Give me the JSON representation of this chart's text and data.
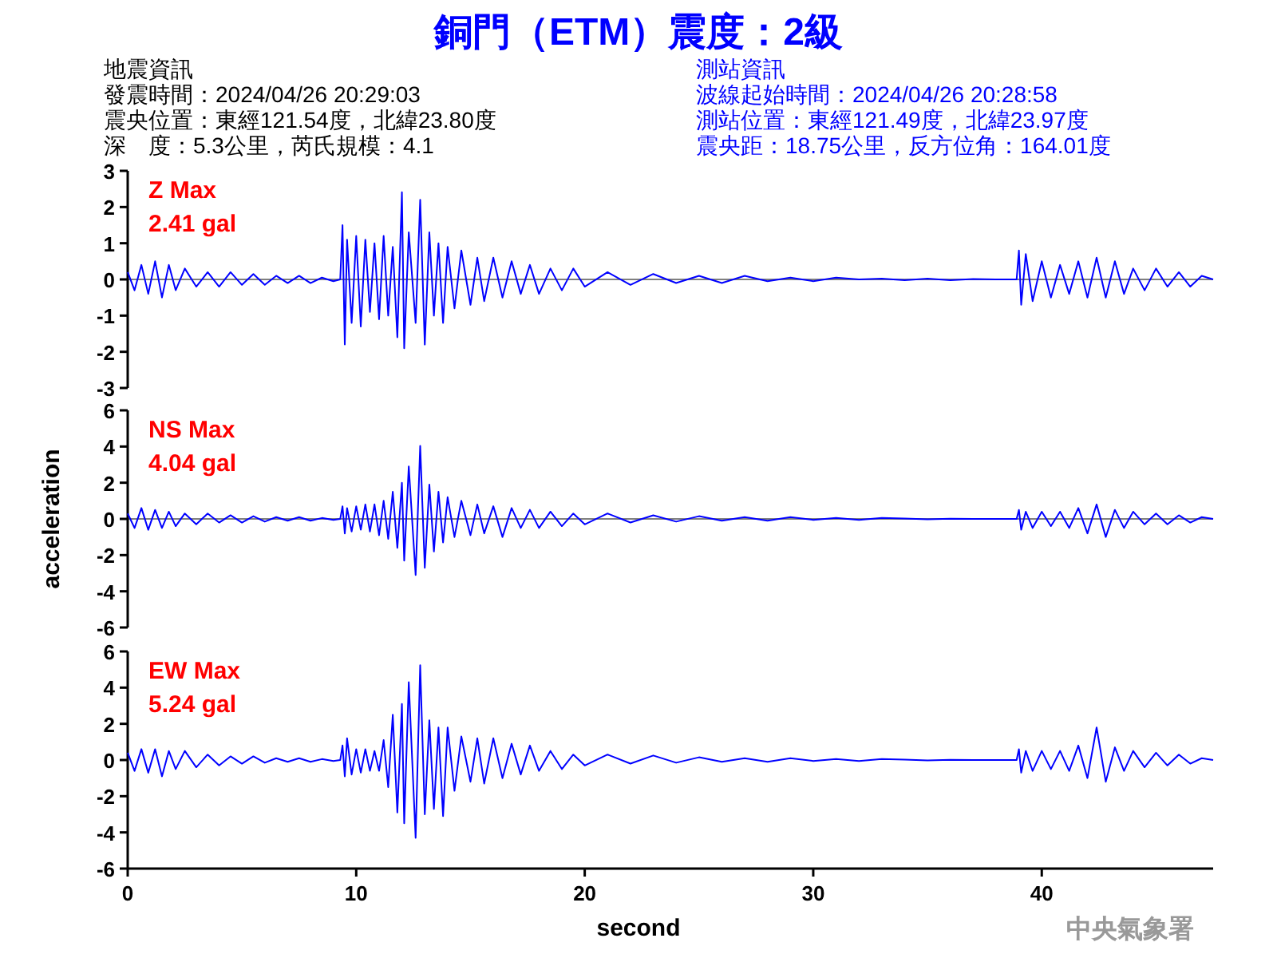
{
  "chart_data": [
    {
      "type": "line",
      "title": "銅門（ETM）震度：2級",
      "annotations": [
        "Z Max",
        "2.41 gal",
        "地震資訊",
        "發震時間：2024/04/26 20:29:03",
        "震央位置：東經121.54度，北緯23.80度",
        "深　度：5.3公里，芮氏規模：4.1",
        "測站資訊",
        "波線起始時間：2024/04/26 20:28:58",
        "測站位置：東經121.49度，北緯23.97度",
        "震央距：18.75公里，反方位角：164.01度"
      ],
      "x": [
        0,
        0.3,
        0.6,
        0.9,
        1.2,
        1.5,
        1.8,
        2.1,
        2.5,
        3,
        3.5,
        4,
        4.5,
        5,
        5.5,
        6,
        6.5,
        7,
        7.5,
        8,
        8.5,
        9,
        9.3,
        9.4,
        9.5,
        9.6,
        9.8,
        10,
        10.2,
        10.4,
        10.6,
        10.8,
        11,
        11.2,
        11.4,
        11.6,
        11.8,
        12,
        12.1,
        12.3,
        12.6,
        12.8,
        13,
        13.2,
        13.4,
        13.6,
        13.8,
        14,
        14.3,
        14.6,
        15,
        15.3,
        15.6,
        16,
        16.4,
        16.8,
        17.2,
        17.6,
        18,
        18.5,
        19,
        19.5,
        20,
        21,
        22,
        23,
        24,
        25,
        26,
        27,
        28,
        29,
        30,
        31,
        32,
        33,
        34,
        35,
        36,
        37,
        38,
        38.9,
        39,
        39.1,
        39.3,
        39.6,
        40,
        40.4,
        40.8,
        41.2,
        41.6,
        42,
        42.4,
        42.8,
        43.2,
        43.6,
        44,
        44.5,
        45,
        45.5,
        46,
        46.5,
        47,
        47.5
      ],
      "series": [
        {
          "color": "#0000ff",
          "values": [
            0.2,
            -0.3,
            0.4,
            -0.4,
            0.5,
            -0.5,
            0.4,
            -0.3,
            0.3,
            -0.2,
            0.2,
            -0.2,
            0.2,
            -0.15,
            0.15,
            -0.15,
            0.1,
            -0.1,
            0.1,
            -0.1,
            0.05,
            -0.05,
            0,
            1.5,
            -1.8,
            1.1,
            -1.2,
            1.2,
            -1.3,
            1.1,
            -0.9,
            1.0,
            -1.1,
            1.2,
            -1.0,
            0.9,
            -1.6,
            2.41,
            -1.9,
            1.3,
            -1.2,
            2.2,
            -1.8,
            1.3,
            -1.0,
            1.0,
            -1.2,
            0.9,
            -0.8,
            0.8,
            -0.7,
            0.6,
            -0.6,
            0.6,
            -0.5,
            0.5,
            -0.4,
            0.4,
            -0.4,
            0.3,
            -0.3,
            0.3,
            -0.2,
            0.2,
            -0.15,
            0.15,
            -0.1,
            0.1,
            -0.1,
            0.1,
            -0.05,
            0.05,
            -0.05,
            0.05,
            0,
            0.02,
            -0.02,
            0.02,
            -0.02,
            0.01,
            0,
            0,
            0.8,
            -0.7,
            0.7,
            -0.6,
            0.5,
            -0.5,
            0.4,
            -0.4,
            0.5,
            -0.5,
            0.6,
            -0.5,
            0.5,
            -0.4,
            0.3,
            -0.3,
            0.3,
            -0.2,
            0.2,
            -0.2,
            0.1,
            0
          ]
        }
      ],
      "xlim": [
        0,
        47.5
      ],
      "ylim": [
        -3,
        3
      ],
      "yticks": [
        -3,
        -2,
        -1,
        0,
        1,
        2,
        3
      ],
      "tick_labels": "y"
    },
    {
      "type": "line",
      "ylabel": "acceleration",
      "annotations": [
        "NS Max",
        "4.04 gal"
      ],
      "x": [
        0,
        0.3,
        0.6,
        0.9,
        1.2,
        1.5,
        1.8,
        2.1,
        2.5,
        3,
        3.5,
        4,
        4.5,
        5,
        5.5,
        6,
        6.5,
        7,
        7.5,
        8,
        8.5,
        9,
        9.3,
        9.4,
        9.5,
        9.6,
        9.8,
        10,
        10.2,
        10.4,
        10.6,
        10.8,
        11,
        11.2,
        11.4,
        11.6,
        11.8,
        12,
        12.1,
        12.3,
        12.6,
        12.8,
        13,
        13.2,
        13.4,
        13.6,
        13.8,
        14,
        14.3,
        14.6,
        15,
        15.3,
        15.6,
        16,
        16.4,
        16.8,
        17.2,
        17.6,
        18,
        18.5,
        19,
        19.5,
        20,
        21,
        22,
        23,
        24,
        25,
        26,
        27,
        28,
        29,
        30,
        31,
        32,
        33,
        34,
        35,
        36,
        37,
        38,
        38.9,
        39,
        39.1,
        39.3,
        39.6,
        40,
        40.4,
        40.8,
        41.2,
        41.6,
        42,
        42.4,
        42.8,
        43.2,
        43.6,
        44,
        44.5,
        45,
        45.5,
        46,
        46.5,
        47,
        47.5
      ],
      "series": [
        {
          "color": "#0000ff",
          "values": [
            0.3,
            -0.5,
            0.6,
            -0.6,
            0.5,
            -0.5,
            0.4,
            -0.4,
            0.3,
            -0.3,
            0.3,
            -0.2,
            0.2,
            -0.2,
            0.15,
            -0.15,
            0.1,
            -0.1,
            0.1,
            -0.1,
            0.05,
            -0.05,
            0,
            0.7,
            -0.8,
            0.6,
            -0.7,
            0.7,
            -0.6,
            0.8,
            -0.7,
            0.8,
            -0.9,
            1.0,
            -1.1,
            1.5,
            -1.6,
            2.0,
            -2.3,
            2.9,
            -3.1,
            4.04,
            -2.7,
            1.9,
            -1.8,
            1.5,
            -1.3,
            1.2,
            -1.0,
            1.0,
            -0.9,
            0.8,
            -0.8,
            0.7,
            -1.0,
            0.6,
            -0.5,
            0.5,
            -0.5,
            0.4,
            -0.4,
            0.3,
            -0.3,
            0.3,
            -0.2,
            0.2,
            -0.15,
            0.15,
            -0.1,
            0.1,
            -0.1,
            0.1,
            -0.05,
            0.05,
            -0.05,
            0.05,
            0.02,
            -0.02,
            0.01,
            0,
            0,
            0,
            0.5,
            -0.6,
            0.4,
            -0.5,
            0.4,
            -0.4,
            0.4,
            -0.5,
            0.6,
            -0.8,
            0.8,
            -1.0,
            0.5,
            -0.5,
            0.4,
            -0.3,
            0.3,
            -0.3,
            0.2,
            -0.2,
            0.1,
            0
          ]
        }
      ],
      "xlim": [
        0,
        47.5
      ],
      "ylim": [
        -6,
        6
      ],
      "yticks": [
        -6,
        -4,
        -2,
        0,
        2,
        4,
        6
      ],
      "tick_labels": "y"
    },
    {
      "type": "line",
      "xlabel": "second",
      "annotations": [
        "EW Max",
        "5.24 gal",
        "中央氣象署"
      ],
      "x": [
        0,
        0.3,
        0.6,
        0.9,
        1.2,
        1.5,
        1.8,
        2.1,
        2.5,
        3,
        3.5,
        4,
        4.5,
        5,
        5.5,
        6,
        6.5,
        7,
        7.5,
        8,
        8.5,
        9,
        9.3,
        9.4,
        9.5,
        9.6,
        9.8,
        10,
        10.2,
        10.4,
        10.6,
        10.8,
        11,
        11.2,
        11.4,
        11.6,
        11.8,
        12,
        12.1,
        12.3,
        12.6,
        12.8,
        13,
        13.2,
        13.4,
        13.6,
        13.8,
        14,
        14.3,
        14.6,
        15,
        15.3,
        15.6,
        16,
        16.4,
        16.8,
        17.2,
        17.6,
        18,
        18.5,
        19,
        19.5,
        20,
        21,
        22,
        23,
        24,
        25,
        26,
        27,
        28,
        29,
        30,
        31,
        32,
        33,
        34,
        35,
        36,
        37,
        38,
        38.9,
        39,
        39.1,
        39.3,
        39.6,
        40,
        40.4,
        40.8,
        41.2,
        41.6,
        42,
        42.4,
        42.8,
        43.2,
        43.6,
        44,
        44.5,
        45,
        45.5,
        46,
        46.5,
        47,
        47.5
      ],
      "series": [
        {
          "color": "#0000ff",
          "values": [
            0.4,
            -0.6,
            0.6,
            -0.7,
            0.6,
            -0.9,
            0.5,
            -0.5,
            0.5,
            -0.4,
            0.3,
            -0.3,
            0.2,
            -0.2,
            0.2,
            -0.15,
            0.1,
            -0.1,
            0.1,
            -0.1,
            0.05,
            -0.05,
            0,
            0.8,
            -0.9,
            1.2,
            -0.8,
            0.6,
            -0.7,
            0.6,
            -0.6,
            0.5,
            -0.6,
            1.1,
            -1.5,
            2.5,
            -2.9,
            3.1,
            -3.5,
            4.3,
            -4.3,
            5.24,
            -3.0,
            2.2,
            -2.7,
            1.8,
            -3.1,
            1.8,
            -1.7,
            1.3,
            -1.2,
            1.2,
            -1.3,
            1.2,
            -1.0,
            0.9,
            -0.8,
            0.8,
            -0.6,
            0.5,
            -0.5,
            0.3,
            -0.3,
            0.3,
            -0.2,
            0.25,
            -0.15,
            0.15,
            -0.1,
            0.1,
            -0.1,
            0.1,
            -0.05,
            0.05,
            -0.05,
            0.05,
            0.02,
            -0.02,
            0.01,
            0,
            0,
            0,
            0.6,
            -0.7,
            0.5,
            -0.6,
            0.5,
            -0.5,
            0.5,
            -0.6,
            0.8,
            -1.0,
            1.8,
            -1.2,
            0.7,
            -0.6,
            0.5,
            -0.4,
            0.4,
            -0.3,
            0.3,
            -0.2,
            0.1,
            0
          ]
        }
      ],
      "xlim": [
        0,
        47.5
      ],
      "ylim": [
        -6,
        6
      ],
      "xticks": [
        0,
        10,
        20,
        30,
        40
      ],
      "yticks": [
        -6,
        -4,
        -2,
        0,
        2,
        4,
        6
      ]
    }
  ]
}
